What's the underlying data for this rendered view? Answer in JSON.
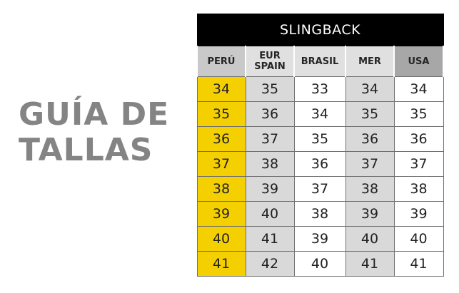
{
  "guide": {
    "title_line1": "GUÍA DE",
    "title_line2": "TALLAS"
  },
  "table": {
    "title": "SLINGBACK",
    "columns": [
      {
        "line1": "PERÚ",
        "line2": ""
      },
      {
        "line1": "EUR",
        "line2": "SPAIN"
      },
      {
        "line1": "BRASIL",
        "line2": ""
      },
      {
        "line1": "MER",
        "line2": ""
      },
      {
        "line1": "USA",
        "line2": ""
      }
    ],
    "rows": [
      [
        "34",
        "35",
        "33",
        "34",
        "34"
      ],
      [
        "35",
        "36",
        "34",
        "35",
        "35"
      ],
      [
        "36",
        "37",
        "35",
        "36",
        "36"
      ],
      [
        "37",
        "38",
        "36",
        "37",
        "37"
      ],
      [
        "38",
        "39",
        "37",
        "38",
        "38"
      ],
      [
        "39",
        "40",
        "38",
        "39",
        "39"
      ],
      [
        "40",
        "41",
        "39",
        "40",
        "40"
      ],
      [
        "41",
        "42",
        "40",
        "41",
        "41"
      ]
    ]
  },
  "colors": {
    "peru_column": "#f5d000",
    "title_bar": "#000000",
    "heading_text": "#848484",
    "shaded_column": "#d9d9d9"
  }
}
